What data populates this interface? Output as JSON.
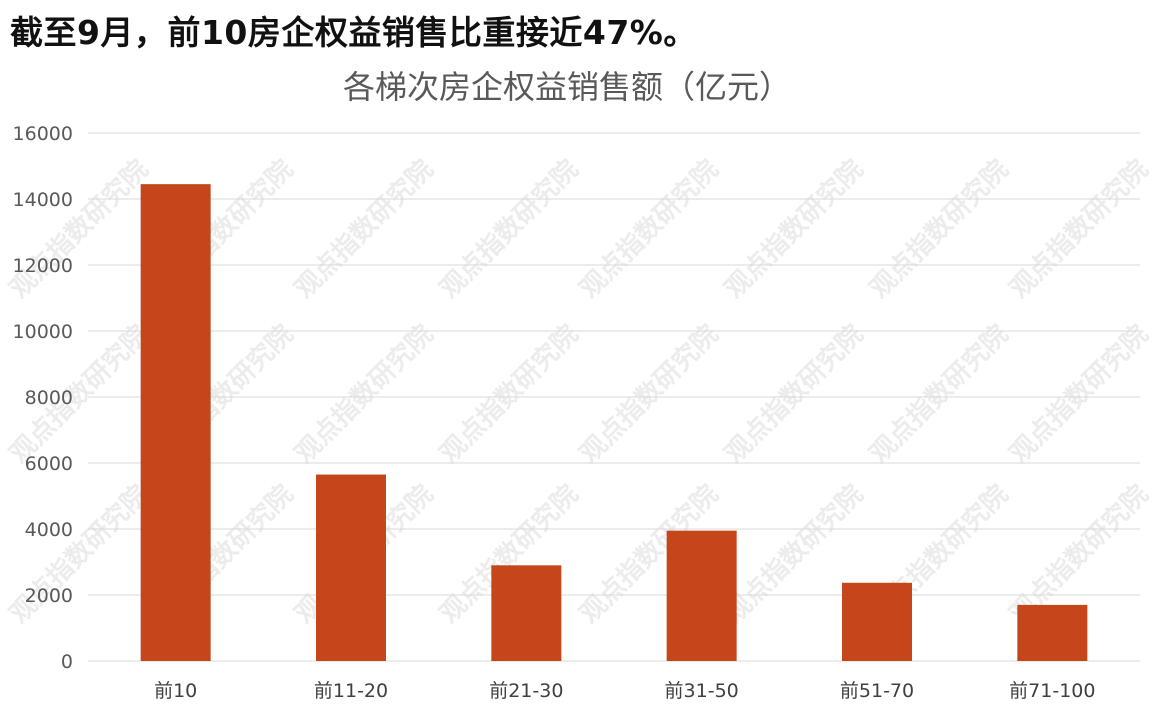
{
  "headline": "截至9月，前10房企权益销售比重接近47%。",
  "watermark": "观点指数研究院",
  "chart_data": {
    "type": "bar",
    "title": "各梯次房企权益销售额（亿元）",
    "xlabel": "",
    "ylabel": "",
    "categories": [
      "前10",
      "前11-20",
      "前21-30",
      "前31-50",
      "前51-70",
      "前71-100"
    ],
    "values": [
      14450,
      5650,
      2900,
      3950,
      2370,
      1700
    ],
    "ylim": [
      0,
      16000
    ],
    "yticks": [
      0,
      2000,
      4000,
      6000,
      8000,
      10000,
      12000,
      14000,
      16000
    ],
    "grid": true,
    "legend": "none",
    "bar_color": "#c5461a"
  }
}
